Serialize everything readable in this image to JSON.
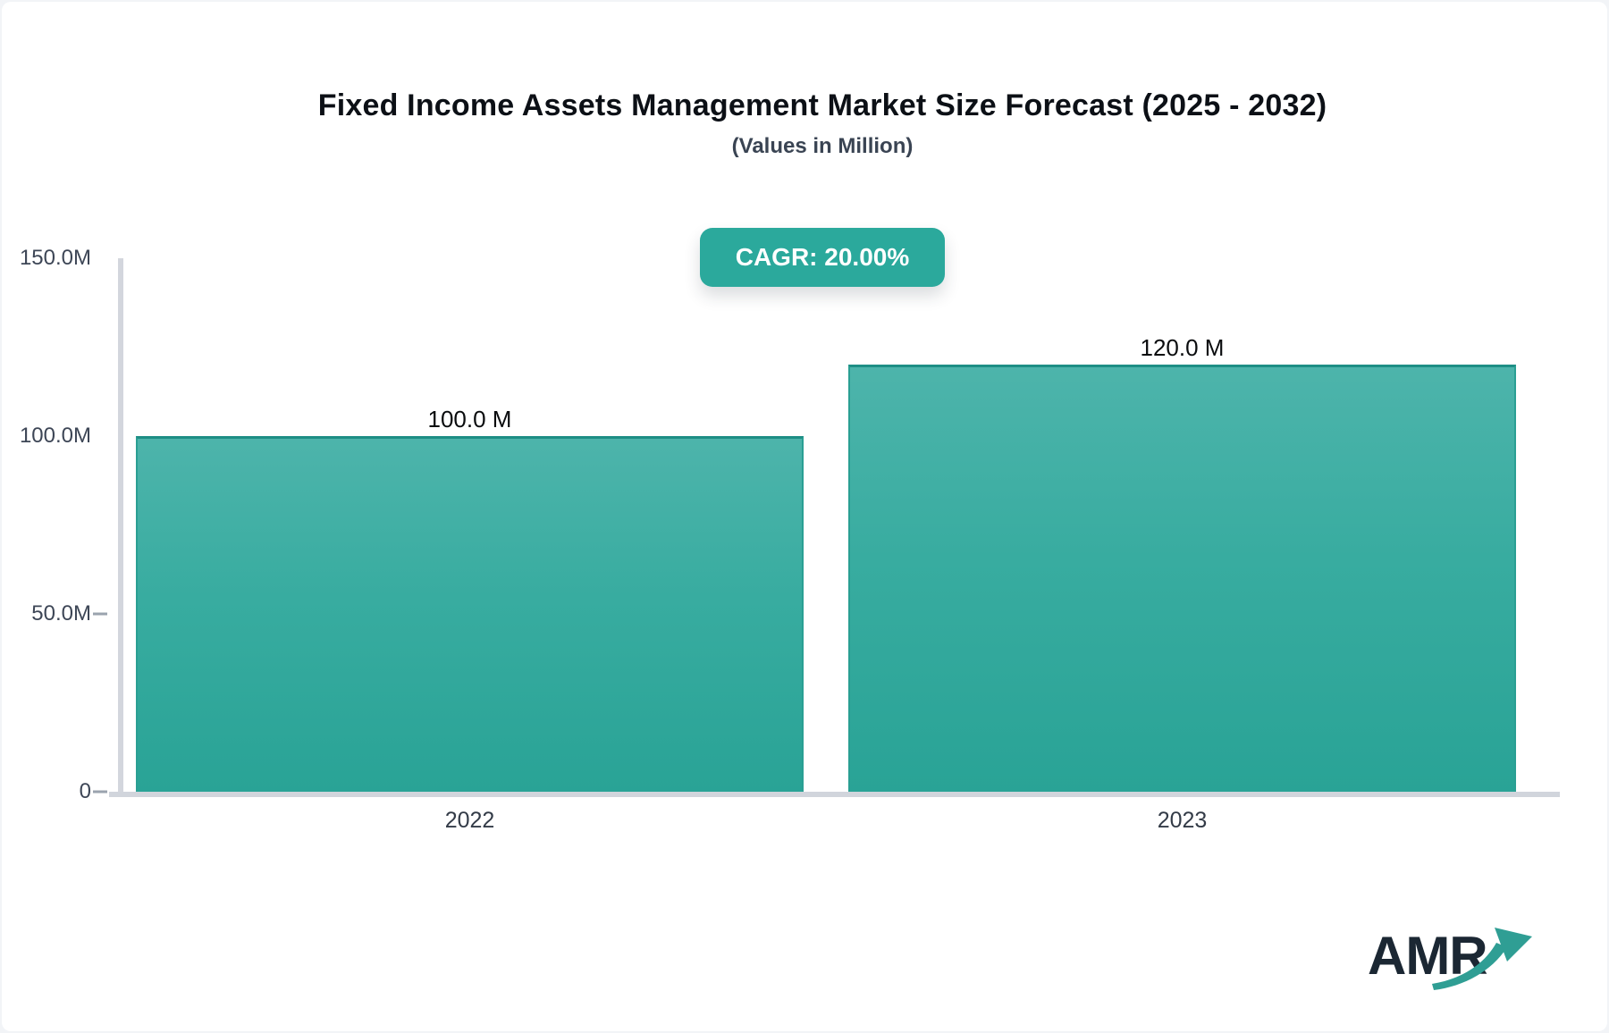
{
  "header": {
    "title": "Fixed Income Assets Management Market Size Forecast (2025 - 2032)",
    "subtitle": "(Values in Million)",
    "cagr_label": "CAGR: 20.00%"
  },
  "chart_data": {
    "type": "bar",
    "title": "Fixed Income Assets Management Market Size Forecast (2025 - 2032)",
    "subtitle": "(Values in Million)",
    "cagr_pct": 20.0,
    "categories": [
      "2022",
      "2023"
    ],
    "values": [
      100.0,
      120.0
    ],
    "value_labels": [
      "100.0 M",
      "120.0 M"
    ],
    "xlabel": "",
    "ylabel": "",
    "units": "Million",
    "ylim": [
      0,
      150
    ],
    "ytick_values": [
      150,
      100,
      50,
      0
    ],
    "ytick_labels": [
      "150.0M",
      "100.0M",
      "50.0M",
      "0"
    ],
    "grid": false,
    "legend": false
  },
  "colors": {
    "accent_teal": "#2ba99c",
    "bar_gradient_top": "#4db4ab",
    "bar_gradient_bottom": "#29a396",
    "bar_border": "#1e8e85",
    "axis_line": "#d3d6dd",
    "tick": "#9aa3ae",
    "title_text": "#0c1016",
    "subtitle_text": "#3a4453",
    "axis_label_text": "#3d4656",
    "badge_text": "#ffffff",
    "logo_text": "#1b2733",
    "logo_arrow": "#2f9e94"
  },
  "logo": {
    "text": "AMR"
  }
}
